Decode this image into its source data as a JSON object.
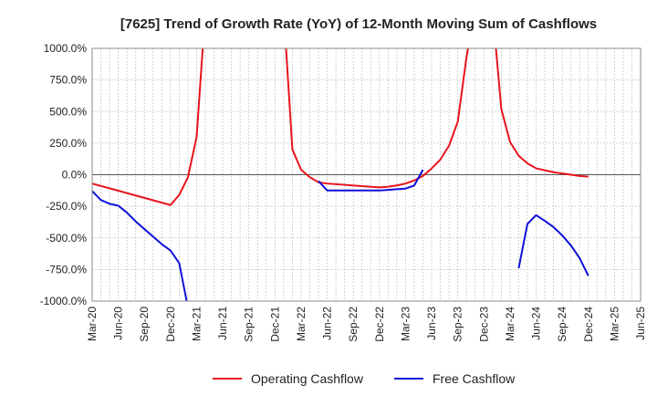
{
  "chart_data": {
    "type": "line",
    "title": "[7625]  Trend of Growth Rate (YoY) of 12-Month Moving Sum of Cashflows",
    "xlabel": "",
    "ylabel": "",
    "ylim": [
      -1000,
      1000
    ],
    "y_ticks": [
      1000,
      750,
      500,
      250,
      0,
      -250,
      -500,
      -750,
      -1000
    ],
    "y_tick_labels": [
      "1000.0%",
      "750.0%",
      "500.0%",
      "250.0%",
      "0.0%",
      "-250.0%",
      "-500.0%",
      "-750.0%",
      "-1000.0%"
    ],
    "x_tick_labels": [
      "Mar-20",
      "Jun-20",
      "Sep-20",
      "Dec-20",
      "Mar-21",
      "Jun-21",
      "Sep-21",
      "Dec-21",
      "Mar-22",
      "Jun-22",
      "Sep-22",
      "Dec-22",
      "Mar-23",
      "Jun-23",
      "Sep-23",
      "Dec-23",
      "Mar-24",
      "Jun-24",
      "Sep-24",
      "Dec-24",
      "Mar-25",
      "Jun-25"
    ],
    "grid": true,
    "legend_position": "bottom-center",
    "series": [
      {
        "name": "Operating Cashflow",
        "color": "#e8141c",
        "points": [
          [
            "Mar-20",
            -70
          ],
          [
            "Dec-20",
            -240
          ],
          [
            "Jan-21",
            -160
          ],
          [
            "Feb-21",
            -20
          ],
          [
            "Mar-21",
            300
          ],
          [
            "Apr-21",
            1300
          ],
          [
            "Jan-22",
            1300
          ],
          [
            "Feb-22",
            200
          ],
          [
            "Mar-22",
            40
          ],
          [
            "Apr-22",
            -20
          ],
          [
            "May-22",
            -60
          ],
          [
            "Jun-22",
            -70
          ],
          [
            "Dec-22",
            -100
          ],
          [
            "Jan-23",
            -95
          ],
          [
            "Feb-23",
            -85
          ],
          [
            "Mar-23",
            -70
          ],
          [
            "Apr-23",
            -45
          ],
          [
            "May-23",
            -10
          ],
          [
            "Jun-23",
            50
          ],
          [
            "Jul-23",
            120
          ],
          [
            "Aug-23",
            230
          ],
          [
            "Sep-23",
            420
          ],
          [
            "Oct-23",
            930
          ],
          [
            "Nov-23",
            1300
          ],
          [
            "Jan-24",
            1300
          ],
          [
            "Feb-24",
            520
          ],
          [
            "Mar-24",
            260
          ],
          [
            "Apr-24",
            150
          ],
          [
            "May-24",
            90
          ],
          [
            "Jun-24",
            50
          ],
          [
            "Jul-24",
            35
          ],
          [
            "Aug-24",
            20
          ],
          [
            "Sep-24",
            10
          ],
          [
            "Oct-24",
            0
          ],
          [
            "Nov-24",
            -10
          ],
          [
            "Dec-24",
            -15
          ]
        ]
      },
      {
        "name": "Free Cashflow",
        "color": "#1010d8",
        "segments": [
          [
            [
              "Mar-20",
              -130
            ],
            [
              "Apr-20",
              -200
            ],
            [
              "May-20",
              -230
            ],
            [
              "Jun-20",
              -245
            ],
            [
              "Jul-20",
              -300
            ],
            [
              "Aug-20",
              -370
            ],
            [
              "Sep-20",
              -430
            ],
            [
              "Oct-20",
              -490
            ],
            [
              "Nov-20",
              -550
            ],
            [
              "Dec-20",
              -600
            ],
            [
              "Jan-21",
              -700
            ],
            [
              "Feb-21",
              -1050
            ]
          ],
          [
            [
              "May-22",
              -50
            ],
            [
              "Jun-22",
              -125
            ],
            [
              "Dec-22",
              -125
            ],
            [
              "Jan-23",
              -120
            ],
            [
              "Feb-23",
              -115
            ],
            [
              "Mar-23",
              -110
            ],
            [
              "Apr-23",
              -85
            ],
            [
              "May-23",
              40
            ]
          ],
          [
            [
              "Apr-24",
              -740
            ],
            [
              "May-24",
              -390
            ],
            [
              "Jun-24",
              -320
            ],
            [
              "Jul-24",
              -365
            ],
            [
              "Aug-24",
              -415
            ],
            [
              "Sep-24",
              -480
            ],
            [
              "Oct-24",
              -560
            ],
            [
              "Nov-24",
              -660
            ],
            [
              "Dec-24",
              -800
            ]
          ]
        ]
      }
    ]
  }
}
